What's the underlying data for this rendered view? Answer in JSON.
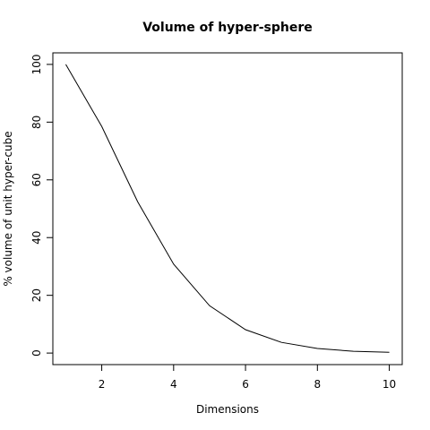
{
  "chart_data": {
    "type": "line",
    "title": "Volume of hyper-sphere",
    "xlabel": "Dimensions",
    "ylabel": "% volume of unit hyper-cube",
    "x": [
      1,
      2,
      3,
      4,
      5,
      6,
      7,
      8,
      9,
      10
    ],
    "series": [
      {
        "values": [
          100,
          78.5,
          52.4,
          30.8,
          16.4,
          8.1,
          3.7,
          1.6,
          0.6,
          0.25
        ]
      }
    ],
    "xticks": [
      "2",
      "4",
      "6",
      "8",
      "10"
    ],
    "yticks": [
      "0",
      "20",
      "40",
      "60",
      "80",
      "100"
    ],
    "xlim": [
      0.64,
      10.36
    ],
    "ylim": [
      -4,
      104
    ],
    "grid": false,
    "line_color": "#000000"
  }
}
